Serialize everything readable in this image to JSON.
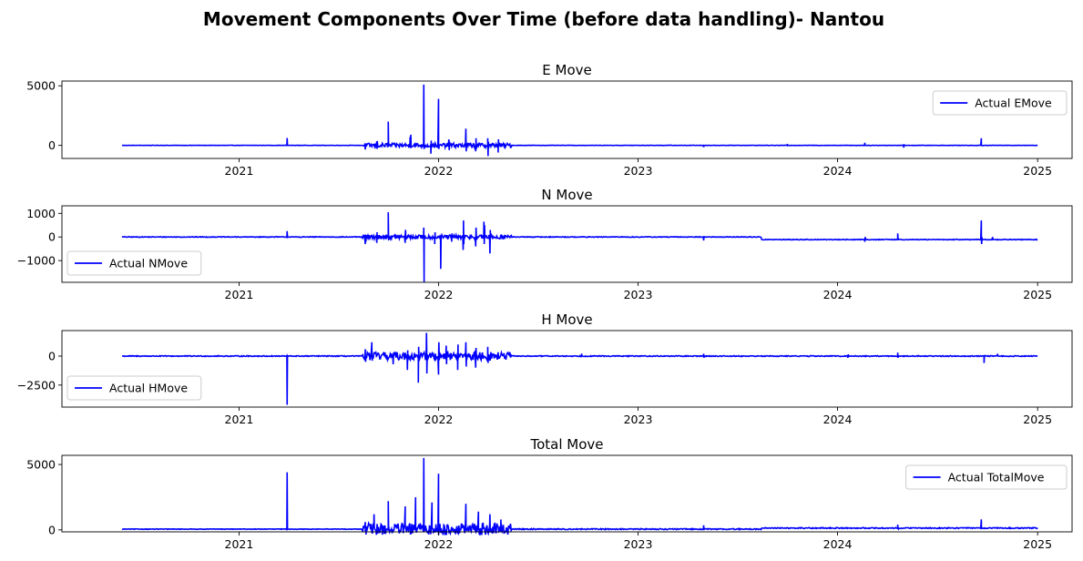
{
  "figure": {
    "title": "Movement Components Over Time (before data handling)- Nantou",
    "line_color": "#0000ff",
    "axis_color": "#000000",
    "background": "#ffffff"
  },
  "chart_data": [
    {
      "type": "line",
      "title": "E Move",
      "xlabel": "",
      "ylabel": "",
      "x_ticks": [
        "2021",
        "2022",
        "2023",
        "2024",
        "2025"
      ],
      "y_ticks": [
        0,
        5000
      ],
      "xlim": [
        "2020-02-12",
        "2025-03-05"
      ],
      "ylim": [
        -1100,
        5400
      ],
      "legend": {
        "label": "Actual EMove",
        "position": "upper-right"
      },
      "grid": false,
      "series": [
        {
          "name": "Actual EMove",
          "x_range": [
            "2020-06-01",
            "2025-01-01"
          ],
          "baseline": 0,
          "dense_noise": [
            {
              "from": "2020-06-01",
              "to": "2021-08-15",
              "amp": 12
            },
            {
              "from": "2021-08-15",
              "to": "2022-05-15",
              "amp": 180
            },
            {
              "from": "2022-05-15",
              "to": "2025-01-01",
              "amp": 15
            }
          ],
          "spikes": [
            {
              "x": "2021-03-30",
              "values": [
                620,
                0
              ]
            },
            {
              "x": "2021-08-20",
              "values": [
                -350,
                120
              ]
            },
            {
              "x": "2021-09-10",
              "values": [
                350,
                -300,
                200
              ]
            },
            {
              "x": "2021-10-01",
              "values": [
                2000,
                0
              ]
            },
            {
              "x": "2021-11-10",
              "values": [
                700,
                -200,
                900
              ]
            },
            {
              "x": "2021-12-05",
              "values": [
                5100,
                -300,
                0
              ]
            },
            {
              "x": "2021-12-18",
              "values": [
                -700,
                400
              ]
            },
            {
              "x": "2022-01-01",
              "values": [
                3900,
                -300,
                0
              ]
            },
            {
              "x": "2022-01-20",
              "values": [
                500,
                -400,
                300
              ]
            },
            {
              "x": "2022-02-20",
              "values": [
                1400,
                -500,
                0
              ]
            },
            {
              "x": "2022-03-10",
              "values": [
                -500,
                600,
                -300
              ]
            },
            {
              "x": "2022-04-01",
              "values": [
                600,
                -900,
                300
              ]
            },
            {
              "x": "2022-04-20",
              "values": [
                -600,
                500,
                0
              ]
            },
            {
              "x": "2023-05-01",
              "values": [
                -150,
                0
              ]
            },
            {
              "x": "2023-10-01",
              "values": [
                120,
                0
              ]
            },
            {
              "x": "2024-02-20",
              "values": [
                220,
                0
              ]
            },
            {
              "x": "2024-05-01",
              "values": [
                -200,
                100
              ]
            },
            {
              "x": "2024-09-20",
              "values": [
                600,
                0
              ]
            }
          ]
        }
      ]
    },
    {
      "type": "line",
      "title": "N Move",
      "xlabel": "",
      "ylabel": "",
      "x_ticks": [
        "2021",
        "2022",
        "2023",
        "2024",
        "2025"
      ],
      "y_ticks": [
        -1000,
        0,
        1000
      ],
      "xlim": [
        "2020-02-12",
        "2025-03-05"
      ],
      "ylim": [
        -1920,
        1320
      ],
      "legend": {
        "label": "Actual NMove",
        "position": "lower-left"
      },
      "grid": false,
      "series": [
        {
          "name": "Actual NMove",
          "x_range": [
            "2020-06-01",
            "2025-01-01"
          ],
          "baseline_segments": [
            {
              "from": "2020-06-01",
              "to": "2023-08-15",
              "value": 0
            },
            {
              "from": "2023-08-15",
              "to": "2025-01-01",
              "value": -110
            }
          ],
          "dense_noise": [
            {
              "from": "2020-06-01",
              "to": "2021-08-15",
              "amp": 15
            },
            {
              "from": "2021-08-15",
              "to": "2022-05-15",
              "amp": 90
            },
            {
              "from": "2022-05-15",
              "to": "2025-01-01",
              "amp": 15
            }
          ],
          "spikes": [
            {
              "x": "2021-03-30",
              "values": [
                250,
                0
              ]
            },
            {
              "x": "2021-08-20",
              "values": [
                -300,
                100,
                -200
              ]
            },
            {
              "x": "2021-09-10",
              "values": [
                -250,
                200
              ]
            },
            {
              "x": "2021-10-01",
              "values": [
                1050,
                -100,
                0
              ]
            },
            {
              "x": "2021-11-01",
              "values": [
                -250,
                300
              ]
            },
            {
              "x": "2021-12-05",
              "values": [
                400,
                -1900,
                0
              ]
            },
            {
              "x": "2021-12-25",
              "values": [
                -300,
                200
              ]
            },
            {
              "x": "2022-01-05",
              "values": [
                -1350,
                0
              ]
            },
            {
              "x": "2022-01-25",
              "values": [
                -200,
                150
              ]
            },
            {
              "x": "2022-02-15",
              "values": [
                -550,
                700,
                -300
              ]
            },
            {
              "x": "2022-03-10",
              "values": [
                -400,
                400
              ]
            },
            {
              "x": "2022-03-25",
              "values": [
                650,
                -300,
                500
              ]
            },
            {
              "x": "2022-04-05",
              "values": [
                -700,
                300
              ]
            },
            {
              "x": "2023-05-01",
              "values": [
                -150,
                0
              ]
            },
            {
              "x": "2024-02-20",
              "values": [
                -200,
                0
              ]
            },
            {
              "x": "2024-04-20",
              "values": [
                150,
                -50
              ]
            },
            {
              "x": "2024-09-20",
              "values": [
                700,
                -300,
                0
              ]
            },
            {
              "x": "2024-10-10",
              "values": [
                -40,
                0
              ]
            }
          ]
        }
      ]
    },
    {
      "type": "line",
      "title": "H Move",
      "xlabel": "",
      "ylabel": "",
      "x_ticks": [
        "2021",
        "2022",
        "2023",
        "2024",
        "2025"
      ],
      "y_ticks": [
        -2500,
        0
      ],
      "xlim": [
        "2020-02-12",
        "2025-03-05"
      ],
      "ylim": [
        -4400,
        2200
      ],
      "legend": {
        "label": "Actual HMove",
        "position": "lower-left"
      },
      "grid": false,
      "series": [
        {
          "name": "Actual HMove",
          "x_range": [
            "2020-06-01",
            "2025-01-01"
          ],
          "baseline": 0,
          "dense_noise": [
            {
              "from": "2020-06-01",
              "to": "2021-08-15",
              "amp": 40
            },
            {
              "from": "2021-08-15",
              "to": "2022-05-15",
              "amp": 350
            },
            {
              "from": "2022-05-15",
              "to": "2025-01-01",
              "amp": 40
            }
          ],
          "spikes": [
            {
              "x": "2021-03-30",
              "values": [
                -4200,
                0
              ]
            },
            {
              "x": "2021-08-20",
              "values": [
                600,
                -500
              ]
            },
            {
              "x": "2021-09-01",
              "values": [
                1200,
                -400
              ]
            },
            {
              "x": "2021-10-10",
              "values": [
                -700,
                300
              ]
            },
            {
              "x": "2021-11-05",
              "values": [
                -1200,
                500
              ]
            },
            {
              "x": "2021-11-25",
              "values": [
                -2300,
                800
              ]
            },
            {
              "x": "2021-12-10",
              "values": [
                2000,
                -1500
              ]
            },
            {
              "x": "2022-01-01",
              "values": [
                -1600,
                1200
              ]
            },
            {
              "x": "2022-01-15",
              "values": [
                900,
                -700
              ]
            },
            {
              "x": "2022-02-05",
              "values": [
                -1200,
                1000
              ]
            },
            {
              "x": "2022-02-20",
              "values": [
                1200,
                -900
              ]
            },
            {
              "x": "2022-03-10",
              "values": [
                -1000,
                700
              ]
            },
            {
              "x": "2022-04-01",
              "values": [
                800,
                -600
              ]
            },
            {
              "x": "2022-09-20",
              "values": [
                200,
                0
              ]
            },
            {
              "x": "2023-05-01",
              "values": [
                200,
                -150
              ]
            },
            {
              "x": "2024-01-20",
              "values": [
                -150,
                150
              ]
            },
            {
              "x": "2024-04-20",
              "values": [
                300,
                -150
              ]
            },
            {
              "x": "2024-09-25",
              "values": [
                -600,
                0
              ]
            },
            {
              "x": "2024-10-20",
              "values": [
                200,
                0
              ]
            }
          ]
        }
      ]
    },
    {
      "type": "line",
      "title": "Total Move",
      "xlabel": "",
      "ylabel": "",
      "x_ticks": [
        "2021",
        "2022",
        "2023",
        "2024",
        "2025"
      ],
      "y_ticks": [
        0,
        5000
      ],
      "xlim": [
        "2020-02-12",
        "2025-03-05"
      ],
      "ylim": [
        -150,
        5700
      ],
      "legend": {
        "label": "Actual TotalMove",
        "position": "upper-right"
      },
      "grid": false,
      "series": [
        {
          "name": "Actual TotalMove",
          "x_range": [
            "2020-06-01",
            "2025-01-01"
          ],
          "baseline_segments": [
            {
              "from": "2020-06-01",
              "to": "2023-08-15",
              "value": 60
            },
            {
              "from": "2023-08-15",
              "to": "2025-01-01",
              "value": 140
            }
          ],
          "dense_noise": [
            {
              "from": "2020-06-01",
              "to": "2021-08-15",
              "amp": 20
            },
            {
              "from": "2021-08-15",
              "to": "2022-05-15",
              "amp": 450
            },
            {
              "from": "2022-05-15",
              "to": "2025-01-01",
              "amp": 40
            }
          ],
          "spikes": [
            {
              "x": "2021-03-30",
              "values": [
                4400,
                60
              ]
            },
            {
              "x": "2021-08-20",
              "values": [
                600,
                60
              ]
            },
            {
              "x": "2021-09-05",
              "values": [
                1200,
                100
              ]
            },
            {
              "x": "2021-10-01",
              "values": [
                2200,
                100
              ]
            },
            {
              "x": "2021-11-01",
              "values": [
                1800,
                100
              ]
            },
            {
              "x": "2021-11-20",
              "values": [
                2500,
                200
              ]
            },
            {
              "x": "2021-12-05",
              "values": [
                5500,
                200
              ]
            },
            {
              "x": "2021-12-20",
              "values": [
                2100,
                150
              ]
            },
            {
              "x": "2022-01-01",
              "values": [
                4300,
                100
              ]
            },
            {
              "x": "2022-02-20",
              "values": [
                2000,
                100
              ]
            },
            {
              "x": "2022-03-15",
              "values": [
                1400,
                100
              ]
            },
            {
              "x": "2022-04-05",
              "values": [
                1200,
                100
              ]
            },
            {
              "x": "2022-04-25",
              "values": [
                800,
                100
              ]
            },
            {
              "x": "2023-05-01",
              "values": [
                350,
                60
              ]
            },
            {
              "x": "2024-04-20",
              "values": [
                400,
                140
              ]
            },
            {
              "x": "2024-09-20",
              "values": [
                800,
                140
              ]
            }
          ]
        }
      ]
    }
  ]
}
